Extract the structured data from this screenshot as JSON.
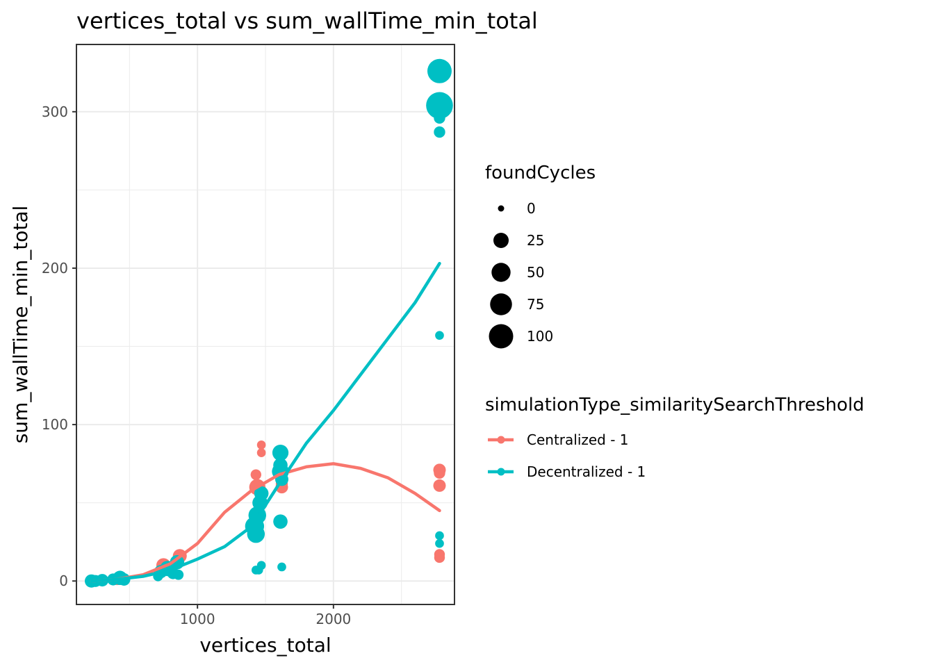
{
  "chart_data": {
    "type": "scatter",
    "title": "vertices_total  vs  sum_wallTime_min_total",
    "xlabel": "vertices_total",
    "ylabel": "sum_wallTime_min_total",
    "xlim": [
      110,
      2890
    ],
    "ylim": [
      -15,
      343
    ],
    "x_ticks": [
      1000,
      2000
    ],
    "x_tick_labels": [
      "1000",
      "2000"
    ],
    "y_ticks": [
      0,
      100,
      200,
      300
    ],
    "y_tick_labels": [
      "0",
      "100",
      "200",
      "300"
    ],
    "grid": true,
    "legend_placement": "right",
    "size_legend": {
      "title": "foundCycles",
      "entries": [
        {
          "label": "0",
          "value": 0
        },
        {
          "label": "25",
          "value": 25
        },
        {
          "label": "50",
          "value": 50
        },
        {
          "label": "75",
          "value": 75
        },
        {
          "label": "100",
          "value": 100
        }
      ]
    },
    "color_legend": {
      "title": "simulationType_similaritySearchThreshold"
    },
    "series": [
      {
        "name": "Centralized - 1",
        "color": "#F8766D",
        "points": [
          {
            "x": 240,
            "y": 0,
            "size": 3
          },
          {
            "x": 290,
            "y": 0.5,
            "size": 5
          },
          {
            "x": 410,
            "y": 1,
            "size": 8
          },
          {
            "x": 720,
            "y": 5,
            "size": 10
          },
          {
            "x": 750,
            "y": 10,
            "size": 20
          },
          {
            "x": 800,
            "y": 8,
            "size": 15
          },
          {
            "x": 870,
            "y": 16,
            "size": 18
          },
          {
            "x": 1430,
            "y": 68,
            "size": 6
          },
          {
            "x": 1440,
            "y": 60,
            "size": 30
          },
          {
            "x": 1470,
            "y": 87,
            "size": 2
          },
          {
            "x": 1470,
            "y": 82,
            "size": 2
          },
          {
            "x": 1620,
            "y": 81,
            "size": 2
          },
          {
            "x": 1620,
            "y": 60,
            "size": 12
          },
          {
            "x": 1620,
            "y": 62,
            "size": 10
          },
          {
            "x": 2780,
            "y": 71,
            "size": 12
          },
          {
            "x": 2780,
            "y": 69,
            "size": 8
          },
          {
            "x": 2780,
            "y": 61,
            "size": 12
          },
          {
            "x": 2780,
            "y": 17,
            "size": 6
          },
          {
            "x": 2780,
            "y": 15,
            "size": 6
          }
        ],
        "trend": {
          "x": [
            220,
            400,
            600,
            800,
            1000,
            1200,
            1400,
            1600,
            1800,
            2000,
            2200,
            2400,
            2600,
            2780
          ],
          "y": [
            0,
            1,
            4,
            11,
            24,
            44,
            58,
            68,
            73,
            75,
            72,
            66,
            56,
            45
          ]
        }
      },
      {
        "name": "Decentralized - 1",
        "color": "#00BFC4",
        "points": [
          {
            "x": 220,
            "y": 0,
            "size": 15
          },
          {
            "x": 250,
            "y": 0,
            "size": 10
          },
          {
            "x": 300,
            "y": 0.5,
            "size": 12
          },
          {
            "x": 380,
            "y": 1,
            "size": 10
          },
          {
            "x": 430,
            "y": 2,
            "size": 20
          },
          {
            "x": 460,
            "y": 1,
            "size": 12
          },
          {
            "x": 710,
            "y": 3,
            "size": 4
          },
          {
            "x": 730,
            "y": 6,
            "size": 15
          },
          {
            "x": 780,
            "y": 8,
            "size": 25
          },
          {
            "x": 820,
            "y": 5,
            "size": 10
          },
          {
            "x": 850,
            "y": 12,
            "size": 20
          },
          {
            "x": 860,
            "y": 4,
            "size": 5
          },
          {
            "x": 1420,
            "y": 35,
            "size": 50
          },
          {
            "x": 1430,
            "y": 30,
            "size": 40
          },
          {
            "x": 1440,
            "y": 42,
            "size": 40
          },
          {
            "x": 1430,
            "y": 7,
            "size": 2
          },
          {
            "x": 1450,
            "y": 7,
            "size": 2
          },
          {
            "x": 1460,
            "y": 50,
            "size": 25
          },
          {
            "x": 1470,
            "y": 56,
            "size": 20
          },
          {
            "x": 1470,
            "y": 10,
            "size": 2
          },
          {
            "x": 1610,
            "y": 82,
            "size": 30
          },
          {
            "x": 1610,
            "y": 74,
            "size": 20
          },
          {
            "x": 1610,
            "y": 70,
            "size": 35
          },
          {
            "x": 1620,
            "y": 65,
            "size": 15
          },
          {
            "x": 1610,
            "y": 38,
            "size": 20
          },
          {
            "x": 1620,
            "y": 9,
            "size": 2
          },
          {
            "x": 2780,
            "y": 326,
            "size": 100
          },
          {
            "x": 2780,
            "y": 304,
            "size": 130
          },
          {
            "x": 2780,
            "y": 296,
            "size": 8
          },
          {
            "x": 2780,
            "y": 287,
            "size": 8
          },
          {
            "x": 2780,
            "y": 157,
            "size": 2
          },
          {
            "x": 2780,
            "y": 29,
            "size": 2
          },
          {
            "x": 2780,
            "y": 24,
            "size": 2
          }
        ],
        "trend": {
          "x": [
            220,
            400,
            600,
            800,
            1000,
            1200,
            1400,
            1600,
            1800,
            2000,
            2200,
            2400,
            2600,
            2780
          ],
          "y": [
            0,
            1,
            3,
            7,
            14,
            22,
            35,
            62,
            88,
            109,
            132,
            155,
            178,
            203
          ]
        }
      }
    ]
  }
}
